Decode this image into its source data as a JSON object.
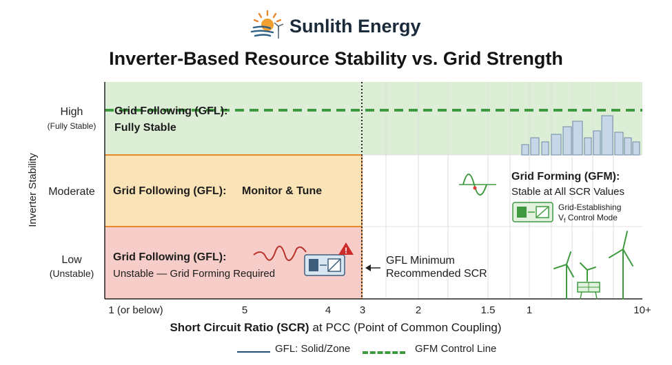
{
  "brand": {
    "name": "Sunlith Energy",
    "logo_icon": "sun-wind-logo-icon"
  },
  "title": "Inverter-Based Resource Stability vs. Grid Strength",
  "chart_data": {
    "type": "zone-chart",
    "title": "Inverter-Based Resource Stability vs. Grid Strength",
    "xlabel_bold": "Short Circuit Ratio (SCR)",
    "xlabel_rest": "at PCC (Point of Common Coupling)",
    "ylabel": "Inverter Stability",
    "x_ticks": [
      {
        "label": "1 (or below)",
        "value": "1 (or below)"
      },
      {
        "label": "5",
        "value": 5
      },
      {
        "label": "4",
        "value": 4
      },
      {
        "label": "3",
        "value": 3
      },
      {
        "label": "2",
        "value": 2
      },
      {
        "label": "1.5",
        "value": 1.5
      },
      {
        "label": "1",
        "value": 1
      },
      {
        "label": "10+",
        "value": "10+"
      }
    ],
    "y_levels": [
      {
        "label": "High",
        "sublabel": "(Fully Stable)"
      },
      {
        "label": "Moderate",
        "sublabel": ""
      },
      {
        "label": "Low",
        "sublabel": "(Unstable)"
      }
    ],
    "threshold": {
      "scr": 3,
      "label_line1": "GFL Minimum",
      "label_line2": "Recommended SCR"
    },
    "zones": [
      {
        "level": "High",
        "title": "Grid Following (GFL):",
        "subtitle": "Fully Stable",
        "color": "#dcefd6"
      },
      {
        "level": "Moderate",
        "title": "Grid Following (GFL):",
        "subtitle": "Monitor & Tune",
        "color": "#fbe3b8"
      },
      {
        "level": "Low",
        "title": "Grid Following (GFL):",
        "subtitle": "Unstable — Grid Forming Required",
        "color": "#f6cdc8"
      }
    ],
    "gfm": {
      "title": "Grid Forming (GFM):",
      "subtitle": "Stable at All SCR Values",
      "device_line1": "Grid-Establishing",
      "device_line2_prefix": "V",
      "device_line2_sub": "f",
      "device_line2_rest": " Control Mode",
      "control_line_level": "High"
    },
    "legend": [
      {
        "name": "GFL: Solid/Zone",
        "style": "solid",
        "color": "#1f4e6e"
      },
      {
        "name": "GFM Control Line",
        "style": "dashed",
        "color": "#3f9a3f"
      }
    ],
    "colors": {
      "green_zone": "#dcefd6",
      "orange_zone": "#fbe3b8",
      "red_zone": "#f6cdc8",
      "zone_border": "#e8862a",
      "gfm_line": "#3f9a3f",
      "axis": "#222222"
    }
  }
}
